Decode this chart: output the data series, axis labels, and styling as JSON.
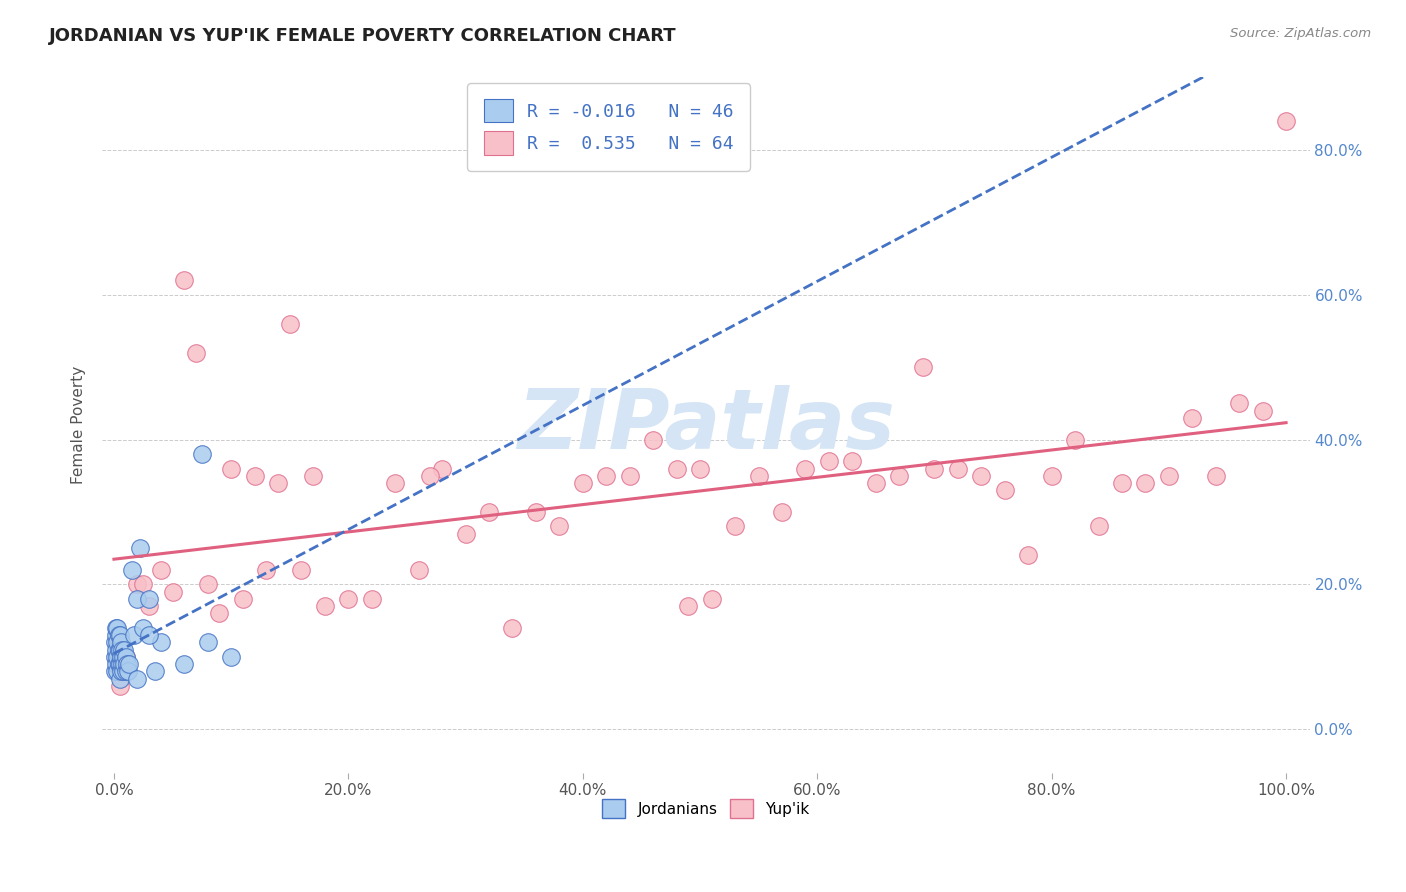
{
  "title": "JORDANIAN VS YUP'IK FEMALE POVERTY CORRELATION CHART",
  "source": "Source: ZipAtlas.com",
  "ylabel": "Female Poverty",
  "r_jordanian": -0.016,
  "n_jordanian": 46,
  "r_yupik": 0.535,
  "n_yupik": 64,
  "xlim": [
    -0.01,
    1.02
  ],
  "ylim": [
    -0.06,
    0.9
  ],
  "yticks": [
    0.0,
    0.2,
    0.4,
    0.6,
    0.8
  ],
  "xticks": [
    0.0,
    0.2,
    0.4,
    0.6,
    0.8,
    1.0
  ],
  "color_jordanian": "#AACCEE",
  "color_yupik": "#F8C0C8",
  "edge_jordanian": "#4472C4",
  "edge_yupik": "#E07090",
  "line_color_jordanian": "#4472C4",
  "line_color_yupik": "#E06080",
  "watermark_color": "#D5E5F5",
  "background_color": "#FFFFFF",
  "grid_color": "#CCCCCC",
  "title_color": "#222222",
  "title_fontsize": 13,
  "legend_labels": [
    "Jordanians",
    "Yup'ik"
  ],
  "jordanian_x": [
    0.001,
    0.001,
    0.001,
    0.002,
    0.002,
    0.002,
    0.002,
    0.003,
    0.003,
    0.003,
    0.003,
    0.004,
    0.004,
    0.004,
    0.005,
    0.005,
    0.005,
    0.005,
    0.006,
    0.006,
    0.006,
    0.007,
    0.007,
    0.008,
    0.008,
    0.009,
    0.009,
    0.01,
    0.01,
    0.011,
    0.012,
    0.013,
    0.015,
    0.017,
    0.02,
    0.022,
    0.025,
    0.03,
    0.035,
    0.04,
    0.06,
    0.075,
    0.08,
    0.1,
    0.03,
    0.02
  ],
  "jordanian_y": [
    0.08,
    0.1,
    0.12,
    0.09,
    0.11,
    0.13,
    0.14,
    0.08,
    0.1,
    0.12,
    0.14,
    0.09,
    0.11,
    0.13,
    0.07,
    0.09,
    0.11,
    0.13,
    0.08,
    0.1,
    0.12,
    0.09,
    0.11,
    0.08,
    0.1,
    0.09,
    0.11,
    0.08,
    0.1,
    0.09,
    0.08,
    0.09,
    0.22,
    0.13,
    0.18,
    0.25,
    0.14,
    0.18,
    0.08,
    0.12,
    0.09,
    0.38,
    0.12,
    0.1,
    0.13,
    0.07
  ],
  "yupik_x": [
    0.005,
    0.01,
    0.02,
    0.025,
    0.03,
    0.04,
    0.05,
    0.06,
    0.07,
    0.08,
    0.09,
    0.1,
    0.11,
    0.12,
    0.13,
    0.14,
    0.15,
    0.16,
    0.18,
    0.2,
    0.22,
    0.24,
    0.26,
    0.28,
    0.3,
    0.32,
    0.34,
    0.36,
    0.38,
    0.4,
    0.42,
    0.44,
    0.46,
    0.48,
    0.5,
    0.51,
    0.53,
    0.55,
    0.57,
    0.59,
    0.61,
    0.63,
    0.65,
    0.67,
    0.69,
    0.7,
    0.72,
    0.74,
    0.76,
    0.78,
    0.8,
    0.82,
    0.84,
    0.86,
    0.88,
    0.9,
    0.92,
    0.94,
    0.96,
    0.98,
    1.0,
    0.17,
    0.27,
    0.49
  ],
  "yupik_y": [
    0.06,
    0.1,
    0.2,
    0.2,
    0.17,
    0.22,
    0.19,
    0.62,
    0.52,
    0.2,
    0.16,
    0.36,
    0.18,
    0.35,
    0.22,
    0.34,
    0.56,
    0.22,
    0.17,
    0.18,
    0.18,
    0.34,
    0.22,
    0.36,
    0.27,
    0.3,
    0.14,
    0.3,
    0.28,
    0.34,
    0.35,
    0.35,
    0.4,
    0.36,
    0.36,
    0.18,
    0.28,
    0.35,
    0.3,
    0.36,
    0.37,
    0.37,
    0.34,
    0.35,
    0.5,
    0.36,
    0.36,
    0.35,
    0.33,
    0.24,
    0.35,
    0.4,
    0.28,
    0.34,
    0.34,
    0.35,
    0.43,
    0.35,
    0.45,
    0.44,
    0.84,
    0.35,
    0.35,
    0.17
  ]
}
